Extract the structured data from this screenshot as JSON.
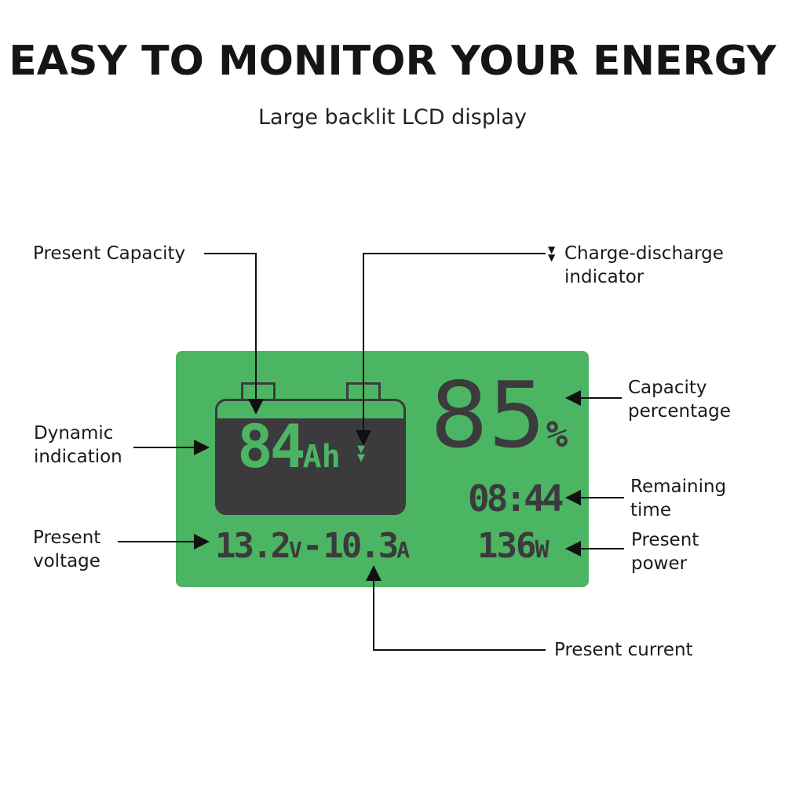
{
  "header": {
    "title": "EASY TO MONITOR YOUR ENERGY",
    "subtitle": "Large backlit LCD display"
  },
  "lcd": {
    "capacity_ah": "84",
    "capacity_unit": "Ah",
    "indicator_icon": "double-down-triangle-icon",
    "percentage": "85",
    "percent_sign": "%",
    "remaining_time": "08:44",
    "voltage": "13.2",
    "voltage_unit": "V",
    "separator": "-",
    "current": "10.3",
    "current_unit": "A",
    "power": "136",
    "power_unit": "W",
    "colors": {
      "background": "#4cb563",
      "segments": "#3b3a3c"
    }
  },
  "callouts": {
    "present_capacity": "Present Capacity",
    "charge_discharge": [
      "Charge-discharge",
      "indicator"
    ],
    "dynamic_indication": [
      "Dynamic",
      "indication"
    ],
    "present_voltage": [
      "Present",
      "voltage"
    ],
    "capacity_percentage": [
      "Capacity",
      "percentage"
    ],
    "remaining_time": [
      "Remaining",
      "time"
    ],
    "present_power": [
      "Present",
      "power"
    ],
    "present_current": "Present current"
  }
}
